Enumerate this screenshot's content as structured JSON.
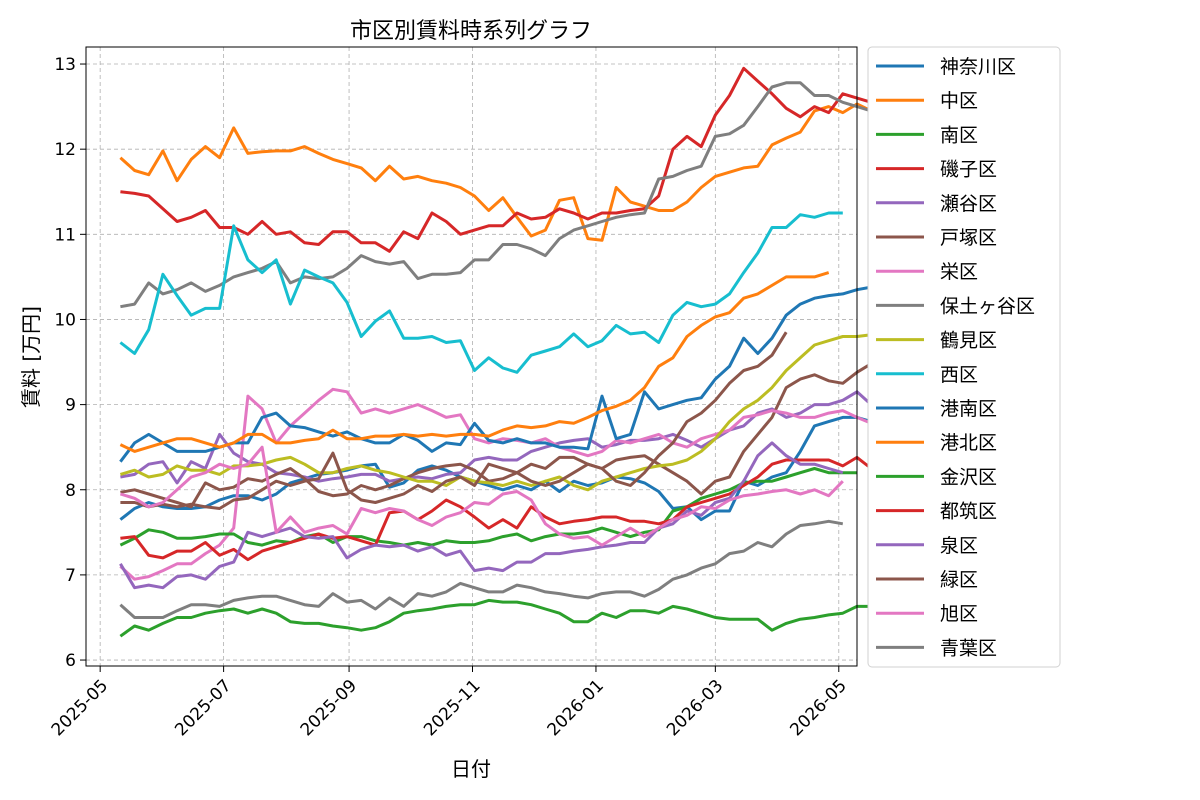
{
  "chart_data": {
    "type": "line",
    "title": "市区別賃料時系列グラフ",
    "xlabel": "日付",
    "ylabel": "賃料 [万円]",
    "x_range": [
      "2025-04-24",
      "2026-05-10"
    ],
    "ylim": [
      5.93,
      13.2
    ],
    "x_ticks": [
      "2025-05",
      "2025-07",
      "2025-09",
      "2025-11",
      "2026-01",
      "2026-03",
      "2026-05"
    ],
    "y_ticks": [
      6,
      7,
      8,
      9,
      10,
      11,
      12,
      13
    ],
    "grid": true,
    "legend_position": "outside-right",
    "start_date": "2025-05-11",
    "interval_days": 7,
    "series": [
      {
        "name": "神奈川区",
        "color": "#1f77b4",
        "values": [
          7.65,
          7.78,
          7.85,
          7.8,
          7.78,
          7.78,
          7.8,
          7.88,
          7.93,
          7.93,
          7.88,
          7.95,
          8.08,
          8.13,
          8.18,
          8.2,
          8.23,
          8.28,
          8.3,
          8.03,
          8.08,
          8.23,
          8.28,
          8.23,
          8.15,
          8.1,
          8.05,
          8.0,
          8.05,
          8.0,
          8.1,
          7.98,
          8.1,
          8.05,
          8.08,
          8.15,
          8.13,
          8.08,
          7.98,
          7.78,
          7.8,
          7.65,
          7.75,
          7.75,
          8.1,
          8.05,
          8.15,
          8.2,
          8.45,
          8.75,
          8.8,
          8.85,
          8.85,
          8.8,
          8.95,
          8.88,
          8.9,
          8.9,
          8.88,
          8.9,
          8.78
        ]
      },
      {
        "name": "中区",
        "color": "#ff7f0e",
        "values": [
          11.9,
          11.75,
          11.7,
          11.98,
          11.63,
          11.88,
          12.03,
          11.9,
          12.25,
          11.95,
          11.97,
          11.98,
          11.98,
          12.03,
          11.95,
          11.88,
          11.83,
          11.78,
          11.63,
          11.8,
          11.65,
          11.68,
          11.63,
          11.6,
          11.55,
          11.45,
          11.28,
          11.43,
          11.2,
          10.98,
          11.05,
          11.4,
          11.43,
          10.95,
          10.93,
          11.55,
          11.38,
          11.33,
          11.28,
          11.28,
          11.38,
          11.55,
          11.68,
          11.73,
          11.78,
          11.8,
          12.05,
          12.13,
          12.2,
          12.45,
          12.5,
          12.43,
          12.53,
          12.45,
          12.73,
          12.75,
          12.78,
          12.78,
          12.53
        ]
      },
      {
        "name": "南区",
        "color": "#2ca02c",
        "values": [
          6.28,
          6.4,
          6.35,
          6.43,
          6.5,
          6.5,
          6.55,
          6.58,
          6.6,
          6.55,
          6.6,
          6.55,
          6.45,
          6.43,
          6.43,
          6.4,
          6.38,
          6.35,
          6.38,
          6.45,
          6.55,
          6.58,
          6.6,
          6.63,
          6.65,
          6.65,
          6.7,
          6.68,
          6.68,
          6.65,
          6.6,
          6.55,
          6.45,
          6.45,
          6.55,
          6.5,
          6.58,
          6.58,
          6.55,
          6.63,
          6.6,
          6.55,
          6.5,
          6.48,
          6.48,
          6.48,
          6.35,
          6.43,
          6.48,
          6.5,
          6.53,
          6.55,
          6.63,
          6.63,
          6.55,
          6.58,
          6.53
        ]
      },
      {
        "name": "磯子区",
        "color": "#d62728",
        "values": [
          11.5,
          11.48,
          11.45,
          11.3,
          11.15,
          11.2,
          11.28,
          11.08,
          11.08,
          11.0,
          11.15,
          11.0,
          11.03,
          10.9,
          10.88,
          11.03,
          11.03,
          10.9,
          10.9,
          10.8,
          11.03,
          10.95,
          11.25,
          11.15,
          11.0,
          11.05,
          11.1,
          11.1,
          11.25,
          11.18,
          11.2,
          11.3,
          11.25,
          11.18,
          11.25,
          11.25,
          11.28,
          11.3,
          11.45,
          12.0,
          12.15,
          12.03,
          12.4,
          12.63,
          12.95,
          12.8,
          12.65,
          12.48,
          12.38,
          12.5,
          12.43,
          12.65,
          12.6,
          12.55,
          12.45,
          12.5
        ]
      },
      {
        "name": "瀬谷区",
        "color": "#9467bd",
        "values": [
          8.15,
          8.18,
          8.3,
          8.33,
          8.08,
          8.33,
          8.25,
          8.65,
          8.43,
          8.33,
          8.3,
          8.2,
          8.18,
          8.15,
          8.1,
          8.13,
          8.15,
          8.18,
          8.18,
          8.1,
          8.13,
          8.15,
          8.13,
          8.18,
          8.2,
          8.35,
          8.38,
          8.35,
          8.35,
          8.45,
          8.5,
          8.55,
          8.58,
          8.6,
          8.5,
          8.53,
          8.58,
          8.58,
          8.6,
          8.65,
          8.58,
          8.5,
          8.6,
          8.7,
          8.75,
          8.9,
          8.95,
          8.85,
          8.9,
          9.0,
          9.0,
          9.05,
          9.15,
          9.0,
          9.05,
          9.1
        ]
      },
      {
        "name": "戸塚区",
        "color": "#8c564b",
        "values": [
          7.97,
          8.0,
          7.95,
          7.9,
          7.85,
          7.8,
          8.08,
          8.0,
          8.03,
          8.13,
          8.1,
          8.18,
          8.25,
          8.13,
          7.98,
          7.93,
          7.95,
          8.05,
          8.0,
          8.05,
          8.13,
          8.2,
          8.25,
          8.28,
          8.3,
          8.23,
          8.1,
          8.13,
          8.2,
          8.3,
          8.25,
          8.38,
          8.38,
          8.3,
          8.25,
          8.35,
          8.38,
          8.4,
          8.3,
          8.2,
          8.1,
          7.95,
          8.1,
          8.15,
          8.45,
          8.65,
          8.85,
          9.2,
          9.3,
          9.35,
          9.28,
          9.25,
          9.38,
          9.48,
          9.42,
          9.43,
          9.23
        ]
      },
      {
        "name": "栄区",
        "color": "#e377c2",
        "values": [
          7.1,
          6.95,
          6.98,
          7.05,
          7.13,
          7.13,
          7.25,
          7.35,
          7.55,
          9.1,
          8.95,
          8.55,
          8.75,
          8.9,
          9.05,
          9.18,
          9.15,
          8.9,
          8.95,
          8.9,
          8.95,
          9.0,
          8.93,
          8.85,
          8.88,
          8.6,
          8.55,
          8.6,
          8.58,
          8.55,
          8.6,
          8.5,
          8.45,
          8.4,
          8.45,
          8.58,
          8.55,
          8.6,
          8.65,
          8.55,
          8.5,
          8.6,
          8.65,
          8.7,
          8.85,
          8.88,
          8.93,
          8.9,
          8.85,
          8.85,
          8.9,
          8.93,
          8.85,
          8.78,
          8.7,
          8.65,
          8.85
        ]
      },
      {
        "name": "保土ヶ谷区",
        "color": "#7f7f7f",
        "values": [
          10.15,
          10.18,
          10.43,
          10.3,
          10.35,
          10.43,
          10.33,
          10.4,
          10.5,
          10.55,
          10.6,
          10.68,
          10.43,
          10.5,
          10.48,
          10.5,
          10.6,
          10.75,
          10.68,
          10.65,
          10.68,
          10.48,
          10.53,
          10.53,
          10.55,
          10.7,
          10.7,
          10.88,
          10.88,
          10.83,
          10.75,
          10.95,
          11.05,
          11.1,
          11.15,
          11.2,
          11.23,
          11.25,
          11.65,
          11.68,
          11.75,
          11.8,
          12.15,
          12.18,
          12.28,
          12.5,
          12.73,
          12.78,
          12.78,
          12.63,
          12.63,
          12.55,
          12.5,
          12.45,
          12.45
        ]
      },
      {
        "name": "鶴見区",
        "color": "#bcbd22",
        "values": [
          8.18,
          8.23,
          8.15,
          8.18,
          8.28,
          8.23,
          8.23,
          8.18,
          8.28,
          8.28,
          8.3,
          8.35,
          8.38,
          8.3,
          8.2,
          8.2,
          8.25,
          8.28,
          8.23,
          8.2,
          8.15,
          8.1,
          8.1,
          8.05,
          8.15,
          8.1,
          8.08,
          8.05,
          8.1,
          8.05,
          8.1,
          8.15,
          8.05,
          8.0,
          8.1,
          8.15,
          8.2,
          8.25,
          8.28,
          8.3,
          8.35,
          8.45,
          8.6,
          8.8,
          8.95,
          9.05,
          9.2,
          9.4,
          9.55,
          9.7,
          9.75,
          9.8,
          9.8,
          9.82,
          9.88
        ]
      },
      {
        "name": "西区",
        "color": "#17becf",
        "values": [
          9.73,
          9.6,
          9.88,
          10.53,
          10.28,
          10.05,
          10.13,
          10.13,
          11.1,
          10.7,
          10.55,
          10.7,
          10.18,
          10.58,
          10.5,
          10.43,
          10.2,
          9.8,
          9.98,
          10.1,
          9.78,
          9.78,
          9.8,
          9.73,
          9.75,
          9.4,
          9.55,
          9.43,
          9.38,
          9.58,
          9.63,
          9.68,
          9.83,
          9.68,
          9.75,
          9.93,
          9.83,
          9.85,
          9.73,
          10.05,
          10.2,
          10.15,
          10.18,
          10.3,
          10.55,
          10.78,
          11.08,
          11.08,
          11.23,
          11.2,
          11.25,
          11.25
        ]
      },
      {
        "name": "港南区",
        "color": "#1f77b4",
        "values": [
          8.33,
          8.55,
          8.65,
          8.55,
          8.45,
          8.45,
          8.45,
          8.5,
          8.55,
          8.55,
          8.85,
          8.9,
          8.75,
          8.73,
          8.68,
          8.63,
          8.68,
          8.6,
          8.55,
          8.55,
          8.65,
          8.58,
          8.45,
          8.55,
          8.53,
          8.78,
          8.58,
          8.55,
          8.6,
          8.55,
          8.55,
          8.5,
          8.5,
          8.48,
          9.1,
          8.6,
          8.65,
          9.15,
          8.95,
          9.0,
          9.05,
          9.08,
          9.3,
          9.45,
          9.78,
          9.6,
          9.78,
          10.05,
          10.18,
          10.25,
          10.28,
          10.3,
          10.35,
          10.38,
          10.43
        ]
      },
      {
        "name": "港北区",
        "color": "#ff7f0e",
        "values": [
          8.53,
          8.45,
          8.5,
          8.55,
          8.6,
          8.6,
          8.55,
          8.5,
          8.55,
          8.65,
          8.65,
          8.55,
          8.55,
          8.58,
          8.6,
          8.7,
          8.6,
          8.6,
          8.63,
          8.63,
          8.65,
          8.63,
          8.65,
          8.63,
          8.65,
          8.65,
          8.63,
          8.7,
          8.75,
          8.73,
          8.75,
          8.8,
          8.78,
          8.85,
          8.93,
          8.98,
          9.05,
          9.2,
          9.45,
          9.55,
          9.8,
          9.93,
          10.03,
          10.08,
          10.25,
          10.3,
          10.4,
          10.5,
          10.5,
          10.5,
          10.55
        ]
      },
      {
        "name": "金沢区",
        "color": "#2ca02c",
        "values": [
          7.35,
          7.43,
          7.53,
          7.5,
          7.43,
          7.43,
          7.45,
          7.48,
          7.48,
          7.38,
          7.35,
          7.4,
          7.38,
          7.45,
          7.48,
          7.38,
          7.45,
          7.45,
          7.4,
          7.38,
          7.35,
          7.38,
          7.35,
          7.4,
          7.38,
          7.38,
          7.4,
          7.45,
          7.48,
          7.4,
          7.45,
          7.48,
          7.48,
          7.5,
          7.55,
          7.5,
          7.45,
          7.5,
          7.53,
          7.75,
          7.8,
          7.9,
          7.95,
          8.0,
          8.08,
          8.1,
          8.1,
          8.15,
          8.2,
          8.25,
          8.2,
          8.2,
          8.2
        ]
      },
      {
        "name": "都筑区",
        "color": "#d62728",
        "values": [
          7.43,
          7.45,
          7.23,
          7.2,
          7.28,
          7.28,
          7.38,
          7.23,
          7.3,
          7.18,
          7.28,
          7.33,
          7.38,
          7.43,
          7.48,
          7.43,
          7.45,
          7.4,
          7.35,
          7.73,
          7.75,
          7.65,
          7.75,
          7.88,
          7.8,
          7.68,
          7.55,
          7.65,
          7.55,
          7.8,
          7.68,
          7.6,
          7.63,
          7.65,
          7.68,
          7.68,
          7.63,
          7.63,
          7.6,
          7.65,
          7.8,
          7.85,
          7.9,
          7.95,
          8.05,
          8.15,
          8.3,
          8.35,
          8.35,
          8.35,
          8.35,
          8.28,
          8.38,
          8.25
        ]
      },
      {
        "name": "泉区",
        "color": "#9467bd",
        "values": [
          7.13,
          6.85,
          6.88,
          6.85,
          6.98,
          7.0,
          6.95,
          7.1,
          7.15,
          7.5,
          7.45,
          7.5,
          7.55,
          7.45,
          7.43,
          7.45,
          7.2,
          7.3,
          7.35,
          7.33,
          7.35,
          7.28,
          7.33,
          7.23,
          7.28,
          7.05,
          7.08,
          7.05,
          7.15,
          7.15,
          7.25,
          7.25,
          7.28,
          7.3,
          7.33,
          7.35,
          7.38,
          7.38,
          7.55,
          7.6,
          7.75,
          7.7,
          7.85,
          7.9,
          8.1,
          8.4,
          8.55,
          8.4,
          8.3,
          8.3,
          8.25,
          8.2
        ]
      },
      {
        "name": "緑区",
        "color": "#8c564b",
        "values": [
          7.85,
          7.85,
          7.8,
          7.83,
          7.8,
          7.83,
          7.8,
          7.78,
          7.88,
          7.9,
          8.0,
          8.1,
          8.05,
          8.1,
          8.13,
          8.43,
          8.0,
          7.88,
          7.85,
          7.9,
          7.95,
          8.05,
          7.98,
          8.1,
          8.15,
          8.05,
          8.3,
          8.25,
          8.2,
          8.1,
          8.05,
          8.1,
          8.2,
          8.3,
          8.25,
          8.1,
          8.05,
          8.2,
          8.4,
          8.55,
          8.8,
          8.9,
          9.05,
          9.25,
          9.4,
          9.45,
          9.58,
          9.85
        ]
      },
      {
        "name": "旭区",
        "color": "#e377c2",
        "values": [
          7.95,
          7.9,
          7.8,
          7.85,
          8.0,
          8.15,
          8.2,
          8.3,
          8.25,
          8.3,
          8.5,
          7.5,
          7.68,
          7.5,
          7.55,
          7.58,
          7.48,
          7.78,
          7.73,
          7.78,
          7.75,
          7.65,
          7.58,
          7.68,
          7.73,
          7.85,
          7.83,
          7.95,
          7.98,
          7.88,
          7.6,
          7.48,
          7.43,
          7.45,
          7.35,
          7.45,
          7.55,
          7.45,
          7.55,
          7.65,
          7.7,
          7.8,
          7.78,
          7.88,
          7.93,
          7.95,
          7.98,
          8.0,
          7.95,
          8.0,
          7.93,
          8.1
        ]
      },
      {
        "name": "青葉区",
        "color": "#7f7f7f",
        "values": [
          6.65,
          6.5,
          6.5,
          6.5,
          6.58,
          6.65,
          6.65,
          6.63,
          6.7,
          6.73,
          6.75,
          6.75,
          6.7,
          6.65,
          6.63,
          6.78,
          6.68,
          6.7,
          6.6,
          6.73,
          6.63,
          6.78,
          6.75,
          6.8,
          6.9,
          6.85,
          6.8,
          6.8,
          6.88,
          6.85,
          6.8,
          6.78,
          6.75,
          6.73,
          6.78,
          6.8,
          6.8,
          6.75,
          6.83,
          6.95,
          7.0,
          7.08,
          7.13,
          7.25,
          7.28,
          7.38,
          7.33,
          7.48,
          7.58,
          7.6,
          7.63,
          7.6
        ]
      }
    ]
  }
}
